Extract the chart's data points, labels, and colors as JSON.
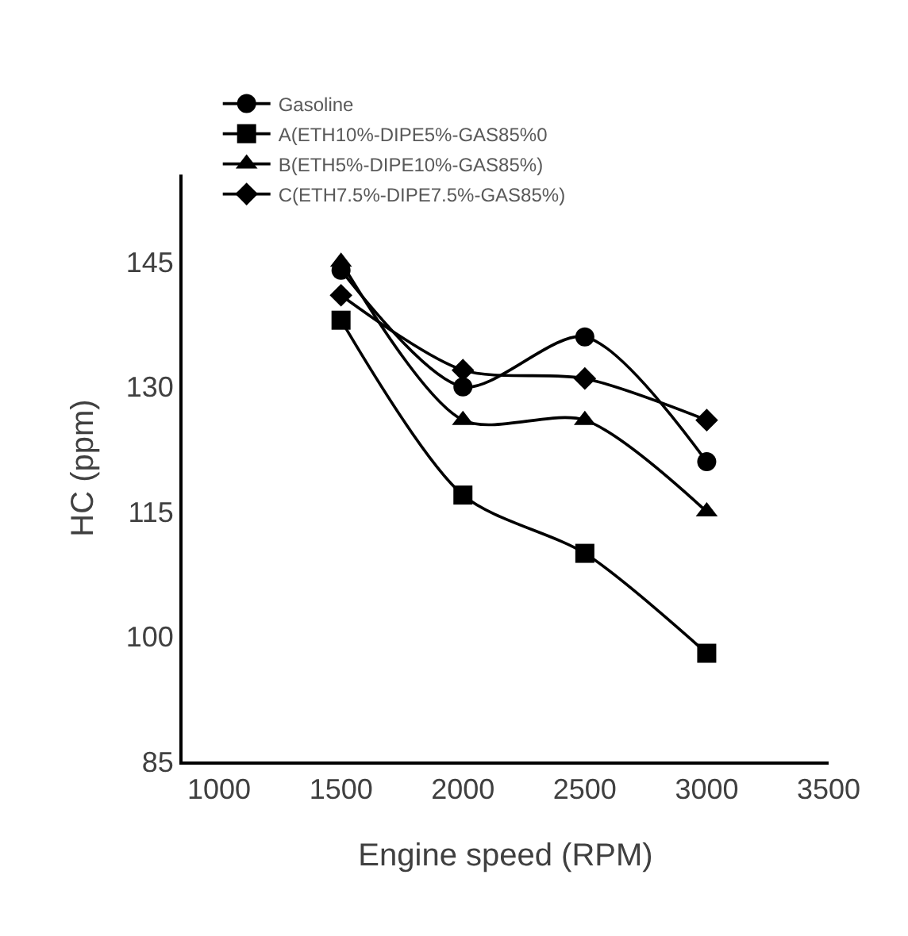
{
  "chart_data": {
    "type": "line",
    "xlabel": "Engine speed (RPM)",
    "ylabel": "HC (ppm)",
    "x": [
      1500,
      2000,
      2500,
      3000
    ],
    "xlim": [
      850,
      3500
    ],
    "xticks": [
      1000,
      1500,
      2000,
      2500,
      3000,
      3500
    ],
    "ylim": [
      85,
      155.5
    ],
    "yticks": [
      85,
      100,
      115,
      130,
      145
    ],
    "grid": false,
    "legend": "top left",
    "line_style": "solid",
    "series": [
      {
        "name": "Gasoline",
        "color": "#000000",
        "marker": "circle",
        "values": [
          144,
          130,
          136,
          121
        ]
      },
      {
        "name": "A(ETH10%-DIPE5%-GAS85%0",
        "color": "#000000",
        "marker": "square",
        "values": [
          138,
          117,
          110,
          98
        ]
      },
      {
        "name": "B(ETH5%-DIPE10%-GAS85%)",
        "color": "#000000",
        "marker": "triangle",
        "values": [
          145,
          126,
          126,
          115
        ]
      },
      {
        "name": "C(ETH7.5%-DIPE7.5%-GAS85%)",
        "color": "#000000",
        "marker": "diamond",
        "values": [
          141,
          132,
          131,
          126
        ]
      }
    ]
  }
}
